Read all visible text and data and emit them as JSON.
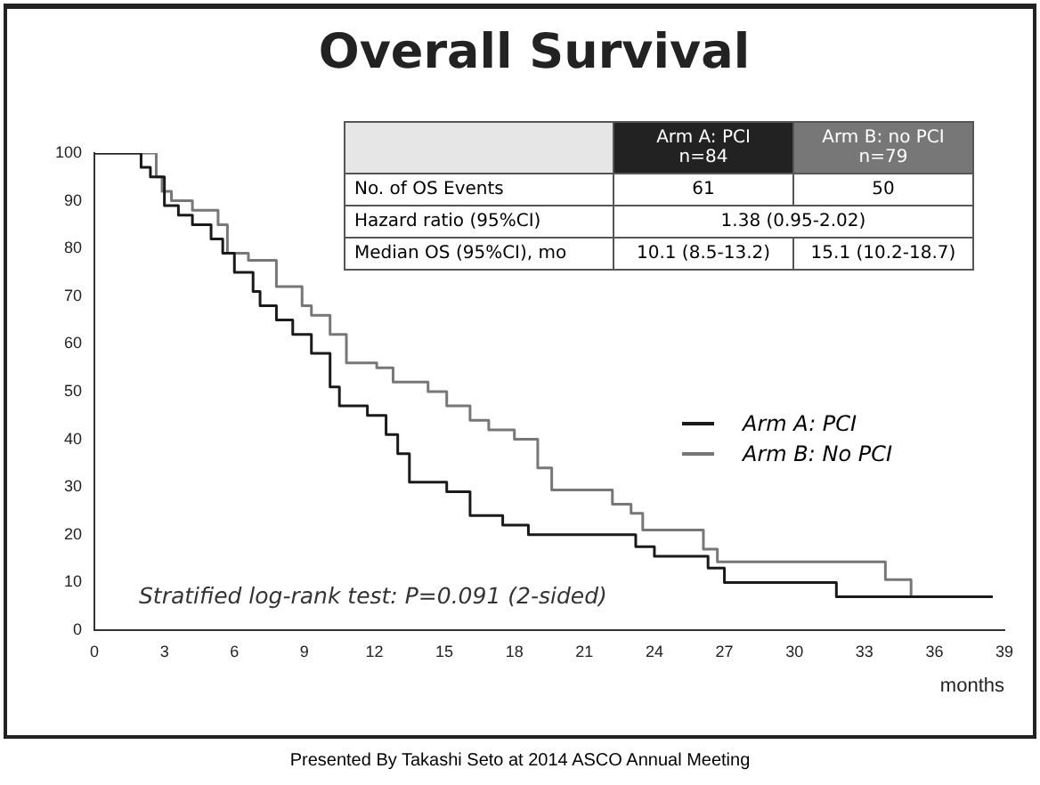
{
  "chart_data": {
    "type": "step",
    "title": "Overall Survival",
    "xlabel": "months",
    "xlim": [
      0,
      39
    ],
    "xticks": [
      0,
      3,
      6,
      9,
      12,
      15,
      18,
      21,
      24,
      27,
      30,
      33,
      36,
      39
    ],
    "ylim": [
      0,
      100
    ],
    "yticks": [
      0,
      10,
      20,
      30,
      40,
      50,
      60,
      70,
      80,
      90,
      100
    ],
    "grid": false,
    "legend": "right",
    "marker": "none",
    "line_style": "solid",
    "series": [
      {
        "name": "Arm A: PCI",
        "color": "#1a1a1a",
        "x": [
          0,
          2,
          2.4,
          3,
          3.6,
          4.2,
          5,
          5.5,
          6,
          6.8,
          7.1,
          7.8,
          8.5,
          9.3,
          10.1,
          10.5,
          11.7,
          12.5,
          13,
          13.5,
          15.1,
          16.1,
          17.5,
          18.6,
          23.2,
          24,
          26.3,
          27,
          31.8,
          38.5
        ],
        "values": [
          100,
          97,
          95,
          89,
          87,
          85,
          82,
          79,
          75,
          71,
          68,
          65,
          62,
          58,
          51,
          47,
          45,
          41,
          37,
          31,
          29,
          24,
          22,
          20,
          17.5,
          15.5,
          13,
          10,
          7,
          7
        ]
      },
      {
        "name": "Arm B: No PCI",
        "color": "#777777",
        "x": [
          0,
          2.65,
          2.9,
          3.3,
          4.2,
          5.3,
          5.7,
          6.6,
          7.8,
          8.9,
          9.3,
          10.1,
          10.8,
          12.1,
          12.8,
          14.3,
          15.1,
          16.1,
          16.9,
          18,
          19,
          19.6,
          22.2,
          23,
          23.5,
          26.1,
          26.7,
          33.9,
          35,
          38.5
        ],
        "values": [
          100,
          95,
          92,
          90,
          88,
          85,
          79,
          77.5,
          72,
          68,
          66,
          62,
          56,
          55,
          52,
          50,
          47,
          44,
          42,
          40,
          34,
          29.4,
          26.4,
          24.5,
          21,
          17,
          14.3,
          10.6,
          7,
          7
        ]
      }
    ],
    "annotations": [
      "Arm A: PCI\nn=84",
      "Arm B: no PCI\nn=79",
      "No. of OS Events",
      "61",
      "50",
      "Hazard ratio (95%CI)",
      "1.38 (0.95-2.02)",
      "Median OS (95%CI), mo",
      "10.1 (8.5-13.2)",
      "15.1 (10.2-18.7)",
      "Stratified log-rank test: P=0.091 (2-sided)",
      "Presented By Takashi Seto at 2014 ASCO Annual Meeting"
    ]
  }
}
